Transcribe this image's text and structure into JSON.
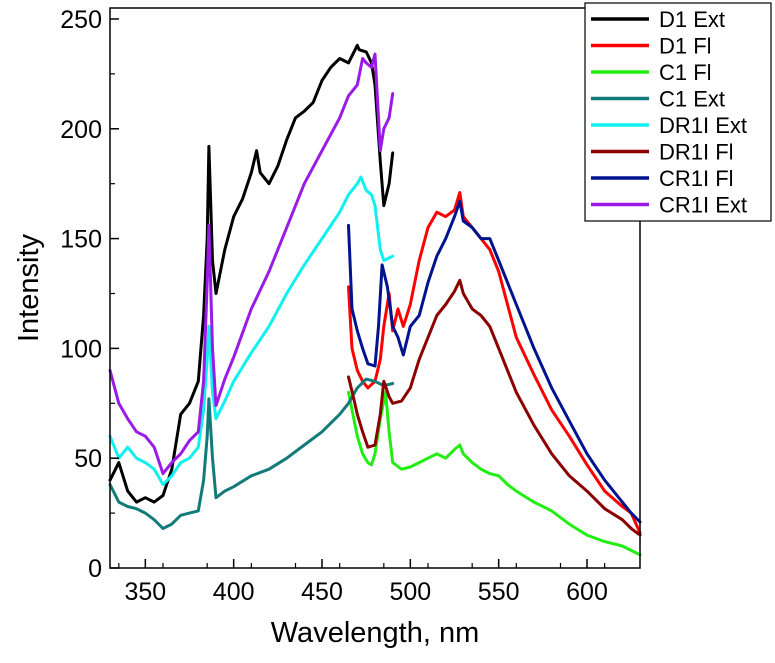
{
  "chart_data": {
    "type": "line",
    "title": "",
    "xlabel": "Wavelength, nm",
    "ylabel": "Intensity",
    "xlim": [
      330,
      630
    ],
    "ylim": [
      0,
      255
    ],
    "x_ticks": [
      350,
      400,
      450,
      500,
      550,
      600
    ],
    "y_ticks": [
      0,
      50,
      100,
      150,
      200,
      250
    ],
    "grid": false,
    "legend": "top-right",
    "series": [
      {
        "name": "D1 Ext",
        "color": "#000000",
        "x": [
          330,
          335,
          340,
          345,
          350,
          355,
          360,
          365,
          370,
          375,
          380,
          383,
          385,
          386,
          388,
          390,
          395,
          400,
          405,
          410,
          413,
          415,
          420,
          425,
          430,
          435,
          440,
          445,
          450,
          455,
          460,
          465,
          470,
          471,
          475,
          478,
          480,
          483,
          485,
          488,
          490
        ],
        "y": [
          40,
          48,
          35,
          30,
          32,
          30,
          33,
          45,
          70,
          75,
          85,
          115,
          150,
          192,
          140,
          125,
          145,
          160,
          168,
          180,
          190,
          180,
          175,
          183,
          195,
          205,
          208,
          212,
          222,
          228,
          232,
          230,
          238,
          236,
          235,
          230,
          220,
          185,
          165,
          175,
          189
        ]
      },
      {
        "name": "D1 Fl",
        "color": "#ff0000",
        "x": [
          465,
          467,
          470,
          473,
          476,
          480,
          483,
          485,
          488,
          490,
          493,
          496,
          500,
          505,
          510,
          515,
          520,
          525,
          528,
          530,
          535,
          540,
          545,
          550,
          555,
          560,
          570,
          580,
          590,
          600,
          610,
          620,
          625,
          630
        ],
        "y": [
          128,
          100,
          90,
          85,
          82,
          85,
          95,
          110,
          125,
          108,
          118,
          110,
          120,
          140,
          155,
          162,
          160,
          163,
          171,
          160,
          155,
          150,
          145,
          135,
          120,
          105,
          88,
          72,
          60,
          47,
          35,
          28,
          25,
          16
        ]
      },
      {
        "name": "C1 Fl",
        "color": "#22ee11",
        "x": [
          465,
          470,
          473,
          476,
          478,
          480,
          483,
          486,
          488,
          490,
          495,
          500,
          505,
          510,
          515,
          520,
          525,
          528,
          530,
          535,
          540,
          545,
          550,
          555,
          560,
          570,
          580,
          590,
          600,
          610,
          620,
          630
        ],
        "y": [
          80,
          60,
          52,
          48,
          47,
          52,
          68,
          80,
          62,
          48,
          45,
          46,
          48,
          50,
          52,
          50,
          54,
          56,
          52,
          48,
          45,
          43,
          42,
          38,
          35,
          30,
          26,
          20,
          15,
          12,
          10,
          6
        ]
      },
      {
        "name": "C1 Ext",
        "color": "#137a7a",
        "x": [
          330,
          335,
          340,
          345,
          350,
          355,
          360,
          365,
          370,
          375,
          380,
          383,
          385,
          386,
          388,
          390,
          395,
          400,
          410,
          420,
          430,
          440,
          450,
          460,
          465,
          470,
          475,
          480,
          485,
          490
        ],
        "y": [
          38,
          30,
          28,
          27,
          25,
          22,
          18,
          20,
          24,
          25,
          26,
          40,
          60,
          77,
          50,
          32,
          35,
          37,
          42,
          45,
          50,
          56,
          62,
          70,
          75,
          82,
          86,
          85,
          83,
          84
        ]
      },
      {
        "name": "DR1I Ext",
        "color": "#11f0f0",
        "x": [
          330,
          335,
          340,
          345,
          350,
          355,
          360,
          365,
          370,
          375,
          380,
          383,
          385,
          386,
          388,
          390,
          395,
          400,
          410,
          420,
          430,
          440,
          450,
          460,
          465,
          470,
          472,
          475,
          478,
          480,
          483,
          485,
          490
        ],
        "y": [
          60,
          50,
          55,
          50,
          48,
          45,
          38,
          42,
          48,
          50,
          55,
          72,
          95,
          110,
          80,
          68,
          76,
          85,
          98,
          110,
          125,
          138,
          150,
          162,
          170,
          175,
          178,
          172,
          170,
          165,
          145,
          140,
          142
        ]
      },
      {
        "name": "DR1I Fl",
        "color": "#8b0000",
        "x": [
          465,
          468,
          470,
          473,
          476,
          480,
          483,
          485,
          488,
          490,
          495,
          500,
          505,
          510,
          515,
          520,
          525,
          528,
          530,
          535,
          540,
          545,
          550,
          555,
          560,
          570,
          580,
          590,
          600,
          610,
          620,
          625,
          630
        ],
        "y": [
          87,
          77,
          70,
          62,
          55,
          56,
          70,
          85,
          78,
          75,
          76,
          82,
          95,
          105,
          115,
          120,
          126,
          131,
          125,
          118,
          115,
          110,
          100,
          90,
          80,
          65,
          52,
          42,
          35,
          27,
          22,
          18,
          15
        ]
      },
      {
        "name": "CR1I Fl",
        "color": "#00138f",
        "x": [
          465,
          467,
          470,
          473,
          476,
          480,
          482,
          484,
          487,
          490,
          493,
          496,
          500,
          505,
          510,
          515,
          520,
          525,
          528,
          530,
          535,
          540,
          545,
          550,
          560,
          570,
          580,
          590,
          600,
          610,
          620,
          625,
          630
        ],
        "y": [
          156,
          118,
          108,
          100,
          93,
          92,
          110,
          138,
          128,
          110,
          105,
          97,
          110,
          115,
          130,
          142,
          150,
          160,
          167,
          158,
          155,
          150,
          150,
          140,
          120,
          100,
          82,
          67,
          52,
          40,
          30,
          25,
          21
        ]
      },
      {
        "name": "CR1I Ext",
        "color": "#9a1be6",
        "x": [
          330,
          335,
          340,
          345,
          350,
          355,
          360,
          365,
          370,
          375,
          380,
          383,
          385,
          386,
          388,
          390,
          395,
          400,
          410,
          420,
          430,
          440,
          450,
          460,
          465,
          470,
          473,
          475,
          478,
          480,
          483,
          485,
          488,
          490
        ],
        "y": [
          90,
          75,
          68,
          62,
          60,
          55,
          43,
          48,
          52,
          58,
          62,
          85,
          130,
          156,
          100,
          74,
          86,
          96,
          118,
          135,
          155,
          175,
          190,
          205,
          215,
          220,
          232,
          230,
          228,
          234,
          190,
          200,
          205,
          216
        ]
      }
    ]
  }
}
